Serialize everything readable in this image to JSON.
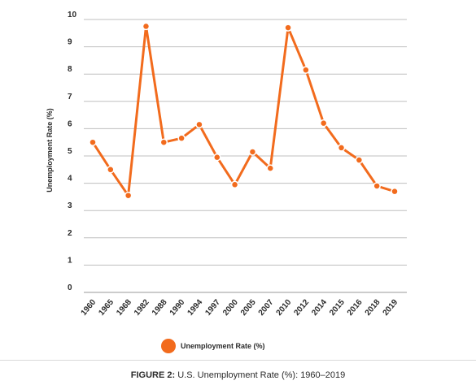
{
  "chart_data": {
    "type": "line",
    "categories": [
      "1960",
      "1965",
      "1968",
      "1982",
      "1988",
      "1990",
      "1994",
      "1997",
      "2000",
      "2005",
      "2007",
      "2010",
      "2012",
      "2014",
      "2015",
      "2016",
      "2018",
      "2019"
    ],
    "series": [
      {
        "name": "Unemployment Rate (%)",
        "values": [
          5.5,
          4.5,
          3.55,
          9.75,
          5.5,
          5.65,
          6.15,
          4.95,
          3.95,
          5.15,
          4.55,
          9.7,
          8.15,
          6.2,
          5.3,
          4.85,
          3.9,
          3.7
        ]
      }
    ],
    "ylabel": "Unemployment Rate (%)",
    "xlabel": "",
    "ylim": [
      0,
      10
    ],
    "yticks": [
      "0",
      "1",
      "2",
      "3",
      "4",
      "5",
      "6",
      "7",
      "8",
      "9",
      "10"
    ],
    "grid": "horizontal",
    "legend_position": "bottom",
    "series_color": "#f26b1d"
  },
  "caption": {
    "label": "FIGURE 2:",
    "text": " U.S. Unemployment Rate (%): 1960–2019"
  }
}
